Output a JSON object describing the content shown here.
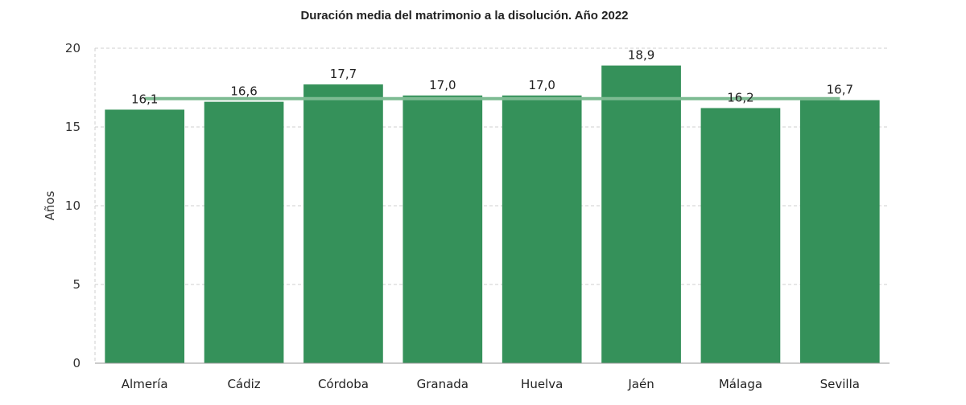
{
  "chart_data": {
    "type": "bar",
    "title": "Duración media del matrimonio a la disolución. Año 2022",
    "xlabel": "",
    "ylabel": "Años",
    "categories": [
      "Almería",
      "Cádiz",
      "Córdoba",
      "Granada",
      "Huelva",
      "Jaén",
      "Málaga",
      "Sevilla"
    ],
    "values": [
      16.1,
      16.6,
      17.7,
      17.0,
      17.0,
      18.9,
      16.2,
      16.7
    ],
    "data_labels": [
      "16,1",
      "16,6",
      "17,7",
      "17,0",
      "17,0",
      "18,9",
      "16,2",
      "16,7"
    ],
    "reference_line": 16.8,
    "ylim": [
      0,
      20
    ],
    "yticks": [
      0,
      5,
      10,
      15,
      20
    ],
    "ytick_labels": [
      "0",
      "5",
      "10",
      "15",
      "20"
    ],
    "grid": true,
    "legend": "none",
    "bar_color": "#35915A",
    "line_color": "#7DBB92"
  }
}
